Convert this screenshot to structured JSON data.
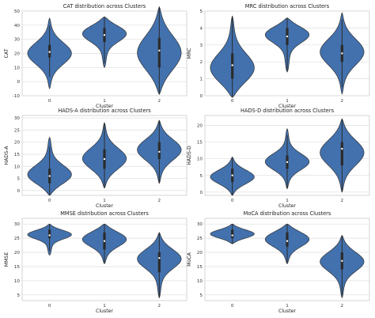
{
  "colors": {
    "violin": "#4271ae",
    "grid": "#dddddd",
    "frame": "#cccccc"
  },
  "chart_data": [
    {
      "type": "violin",
      "title": "CAT distribution across Clusters",
      "xlabel": "Cluster",
      "ylabel": "CAT",
      "categories": [
        "0",
        "1",
        "2"
      ],
      "ylim": [
        -10,
        50
      ],
      "yticks": [
        -10,
        0,
        10,
        20,
        30,
        40,
        50
      ],
      "groups": [
        {
          "range": [
            -5,
            45
          ],
          "q1": 17,
          "median": 21,
          "q3": 26,
          "bulk": [
            20,
            8
          ]
        },
        {
          "range": [
            10,
            46
          ],
          "q1": 28,
          "median": 33,
          "q3": 38,
          "bulk": [
            35,
            6
          ]
        },
        {
          "range": [
            -9,
            53
          ],
          "q1": 10,
          "median": 22,
          "q3": 31,
          "bulk": [
            20,
            13
          ]
        }
      ]
    },
    {
      "type": "violin",
      "title": "MRC distribution across Clusters",
      "xlabel": "Cluster",
      "ylabel": "MRC",
      "categories": [
        "0",
        "1",
        "2"
      ],
      "ylim": [
        0,
        5
      ],
      "yticks": [
        0,
        1,
        2,
        3,
        4,
        5
      ],
      "groups": [
        {
          "range": [
            -0.1,
            4.7
          ],
          "q1": 1.0,
          "median": 1.8,
          "q3": 2.5,
          "bulk": [
            1.5,
            0.9
          ]
        },
        {
          "range": [
            1.4,
            4.6
          ],
          "q1": 3.0,
          "median": 3.5,
          "q3": 4.0,
          "bulk": [
            3.7,
            0.5
          ]
        },
        {
          "range": [
            0.1,
            4.9
          ],
          "q1": 2.0,
          "median": 2.5,
          "q3": 3.0,
          "bulk": [
            2.6,
            0.8
          ]
        }
      ]
    },
    {
      "type": "violin",
      "title": "HADS-A distribution across Clusters",
      "xlabel": "Cluster",
      "ylabel": "HADS-A",
      "categories": [
        "0",
        "1",
        "2"
      ],
      "ylim": [
        -2,
        31
      ],
      "yticks": [
        0,
        5,
        10,
        15,
        20,
        25,
        30
      ],
      "groups": [
        {
          "range": [
            -2,
            22
          ],
          "q1": 3,
          "median": 6,
          "q3": 9,
          "bulk": [
            6,
            4
          ]
        },
        {
          "range": [
            1,
            28
          ],
          "q1": 9,
          "median": 13,
          "q3": 17,
          "bulk": [
            13,
            4.5
          ]
        },
        {
          "range": [
            3,
            29
          ],
          "q1": 13,
          "median": 16,
          "q3": 20,
          "bulk": [
            17,
            4.5
          ]
        }
      ]
    },
    {
      "type": "violin",
      "title": "HADS-D distribution across Clusters",
      "xlabel": "Cluster",
      "ylabel": "HADS-D",
      "categories": [
        "0",
        "1",
        "2"
      ],
      "ylim": [
        -1,
        23
      ],
      "yticks": [
        0,
        5,
        10,
        15,
        20
      ],
      "groups": [
        {
          "range": [
            -1,
            10.5
          ],
          "q1": 3,
          "median": 5,
          "q3": 7,
          "bulk": [
            4.5,
            2.2
          ]
        },
        {
          "range": [
            1,
            19
          ],
          "q1": 7,
          "median": 9,
          "q3": 11,
          "bulk": [
            9,
            2.5
          ]
        },
        {
          "range": [
            0,
            22
          ],
          "q1": 8,
          "median": 13,
          "q3": 15,
          "bulk": [
            12,
            4
          ]
        }
      ]
    },
    {
      "type": "violin",
      "title": "MMSE distribution across Clusters",
      "xlabel": "Cluster",
      "ylabel": "MMSE",
      "categories": [
        "0",
        "1",
        "2"
      ],
      "ylim": [
        3,
        32
      ],
      "yticks": [
        5,
        10,
        15,
        20,
        25,
        30
      ],
      "groups": [
        {
          "range": [
            19,
            30
          ],
          "q1": 25,
          "median": 26,
          "q3": 28,
          "bulk": [
            26.5,
            1.6
          ]
        },
        {
          "range": [
            16,
            30
          ],
          "q1": 21,
          "median": 24,
          "q3": 27,
          "bulk": [
            25,
            2.8
          ]
        },
        {
          "range": [
            4,
            27
          ],
          "q1": 13,
          "median": 18,
          "q3": 20,
          "bulk": [
            18,
            3.5
          ]
        }
      ]
    },
    {
      "type": "violin",
      "title": "MoCA distribution across Clusters",
      "xlabel": "Cluster",
      "ylabel": "MoCA",
      "categories": [
        "0",
        "1",
        "2"
      ],
      "ylim": [
        3,
        32
      ],
      "yticks": [
        5,
        10,
        15,
        20,
        25,
        30
      ],
      "groups": [
        {
          "range": [
            23,
            30
          ],
          "q1": 25,
          "median": 26,
          "q3": 28,
          "bulk": [
            26.5,
            1.6
          ]
        },
        {
          "range": [
            16,
            30
          ],
          "q1": 22,
          "median": 24,
          "q3": 27,
          "bulk": [
            25,
            2.8
          ]
        },
        {
          "range": [
            4,
            26
          ],
          "q1": 14,
          "median": 17,
          "q3": 20,
          "bulk": [
            17,
            3.5
          ]
        }
      ]
    }
  ]
}
